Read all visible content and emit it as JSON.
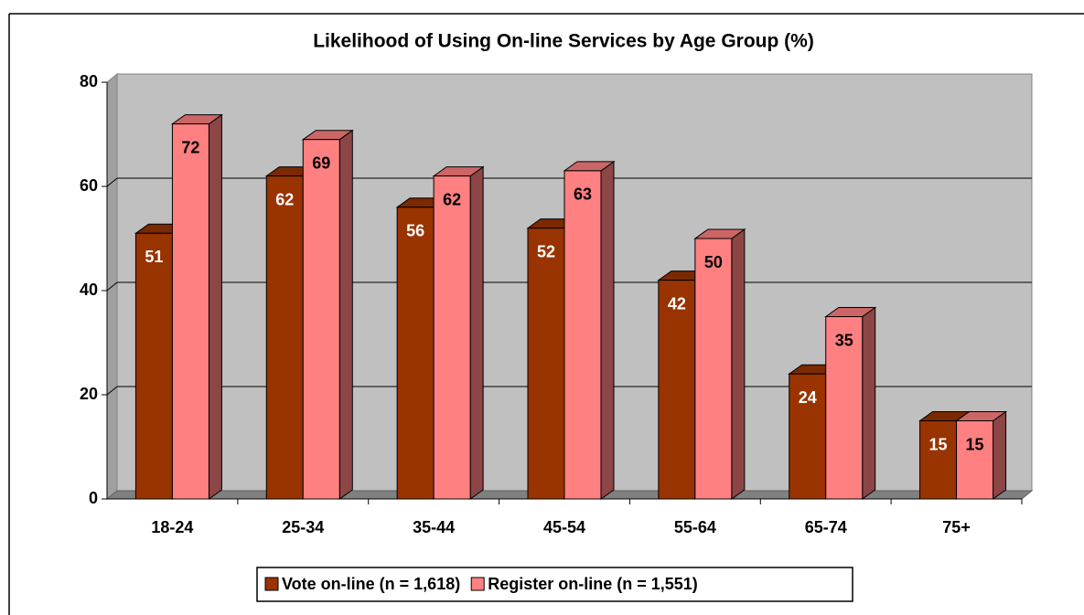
{
  "chart_data": {
    "type": "bar",
    "title": "Likelihood of Using On-line Services by Age Group (%)",
    "categories": [
      "18-24",
      "25-34",
      "35-44",
      "45-54",
      "55-64",
      "65-74",
      "75+"
    ],
    "series": [
      {
        "name": "Vote on-line (n = 1,618)",
        "color": "#993300",
        "values": [
          51,
          62,
          56,
          52,
          42,
          24,
          15
        ]
      },
      {
        "name": "Register on-line (n = 1,551)",
        "color": "#ff8080",
        "values": [
          72,
          69,
          62,
          63,
          50,
          35,
          15
        ]
      }
    ],
    "ylim": [
      0,
      80
    ],
    "yticks": [
      0,
      20,
      40,
      60,
      80
    ],
    "grid": true,
    "legend": "bottom"
  }
}
